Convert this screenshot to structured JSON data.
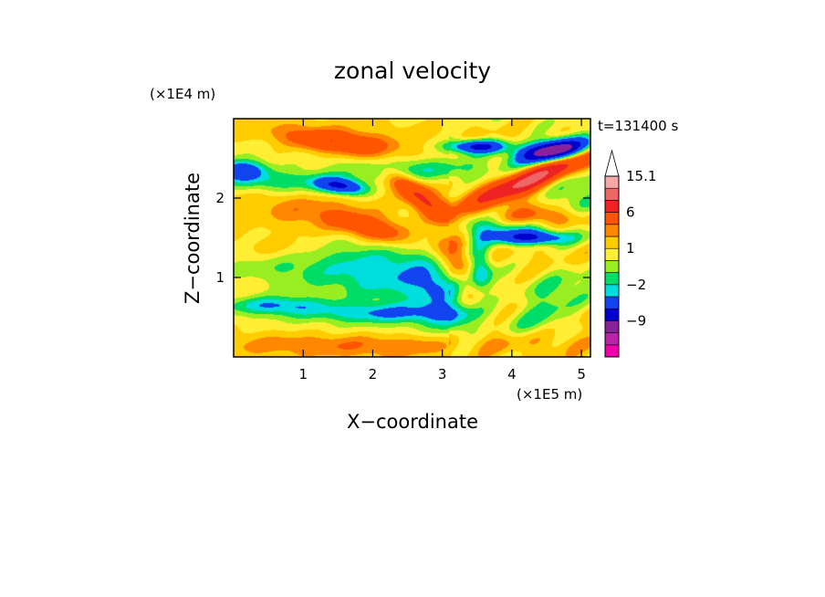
{
  "chart_data": {
    "type": "heatmap",
    "title": "zonal velocity",
    "xlabel": "X−coordinate",
    "ylabel": "Z−coordinate",
    "x_scale_label": "(×1E5 m)",
    "y_scale_label": "(×1E4 m)",
    "time_label": "t=131400 s",
    "xlim": [
      0,
      5.13
    ],
    "ylim": [
      0,
      3.0
    ],
    "x_ticks": [
      1,
      2,
      3,
      4,
      5
    ],
    "y_ticks": [
      1,
      2
    ],
    "colorbar": {
      "levels": [
        -15,
        -12,
        -9,
        -6,
        -3,
        -2,
        -1,
        0,
        1,
        2,
        3,
        6,
        9,
        12,
        15.1
      ],
      "colors": [
        "#ee00aa",
        "#bb22aa",
        "#882299",
        "#0000cc",
        "#1144ee",
        "#00dddd",
        "#00dd66",
        "#99ee22",
        "#ffee33",
        "#ffcc00",
        "#ff8800",
        "#ff5500",
        "#ee2222",
        "#ee6666",
        "#f4a8a8",
        "#ffffff"
      ],
      "labels": [
        {
          "value": -9,
          "text": "−9"
        },
        {
          "value": -2,
          "text": "−2"
        },
        {
          "value": 1,
          "text": "1"
        },
        {
          "value": 6,
          "text": "6"
        },
        {
          "value": 15.1,
          "text": "15.1"
        }
      ],
      "extend": "max"
    },
    "field_features": [
      {
        "x": 4.6,
        "z": 2.6,
        "amp": -14,
        "sx": 0.35,
        "sz": 0.09,
        "tilt": 0.15
      },
      {
        "x": 3.5,
        "z": 2.65,
        "amp": -8,
        "sx": 0.3,
        "sz": 0.06,
        "tilt": 0.0
      },
      {
        "x": 4.3,
        "z": 2.25,
        "amp": 9,
        "sx": 0.6,
        "sz": 0.11,
        "tilt": 0.35
      },
      {
        "x": 1.5,
        "z": 2.7,
        "amp": 5,
        "sx": 0.55,
        "sz": 0.1,
        "tilt": -0.1
      },
      {
        "x": 0.1,
        "z": 2.35,
        "amp": -6,
        "sx": 0.25,
        "sz": 0.09,
        "tilt": 0.0
      },
      {
        "x": 1.55,
        "z": 2.15,
        "amp": -7,
        "sx": 0.25,
        "sz": 0.07,
        "tilt": -0.1
      },
      {
        "x": 0.7,
        "z": 2.2,
        "amp": -3,
        "sx": 0.6,
        "sz": 0.1,
        "tilt": 0.0
      },
      {
        "x": 2.6,
        "z": 2.35,
        "amp": -2.5,
        "sx": 0.8,
        "sz": 0.1,
        "tilt": 0.0
      },
      {
        "x": 2.7,
        "z": 2.0,
        "amp": 5,
        "sx": 0.35,
        "sz": 0.12,
        "tilt": -0.6
      },
      {
        "x": 1.3,
        "z": 1.8,
        "amp": 2.5,
        "sx": 0.9,
        "sz": 0.15,
        "tilt": -0.1
      },
      {
        "x": 2.0,
        "z": 1.6,
        "amp": 3.5,
        "sx": 0.4,
        "sz": 0.1,
        "tilt": -0.2
      },
      {
        "x": 4.3,
        "z": 1.5,
        "amp": -6,
        "sx": 0.35,
        "sz": 0.06,
        "tilt": 0.0
      },
      {
        "x": 4.4,
        "z": 1.75,
        "amp": 3.5,
        "sx": 0.5,
        "sz": 0.1,
        "tilt": 0.0
      },
      {
        "x": 3.8,
        "z": 1.6,
        "amp": -3.5,
        "sx": 0.55,
        "sz": 0.12,
        "tilt": 0.0
      },
      {
        "x": 2.2,
        "z": 1.05,
        "amp": -2.8,
        "sx": 0.6,
        "sz": 0.32,
        "tilt": -0.3
      },
      {
        "x": 1.0,
        "z": 1.05,
        "amp": -1.8,
        "sx": 0.9,
        "sz": 0.3,
        "tilt": -0.2
      },
      {
        "x": 3.0,
        "z": 0.75,
        "amp": -2.8,
        "sx": 0.35,
        "sz": 0.35,
        "tilt": -0.8
      },
      {
        "x": 3.55,
        "z": 1.1,
        "amp": -4,
        "sx": 0.12,
        "sz": 0.25,
        "tilt": 0.0
      },
      {
        "x": 3.2,
        "z": 1.2,
        "amp": 2.5,
        "sx": 0.25,
        "sz": 0.25,
        "tilt": -0.9
      },
      {
        "x": 0.6,
        "z": 0.65,
        "amp": -3.5,
        "sx": 0.5,
        "sz": 0.08,
        "tilt": 0.0
      },
      {
        "x": 2.2,
        "z": 0.55,
        "amp": -3,
        "sx": 0.8,
        "sz": 0.08,
        "tilt": 0.0
      },
      {
        "x": 4.5,
        "z": 0.6,
        "amp": -2.5,
        "sx": 0.4,
        "sz": 0.25,
        "tilt": 0.5
      },
      {
        "x": 1.7,
        "z": 0.15,
        "amp": 1.8,
        "sx": 1.3,
        "sz": 0.1,
        "tilt": 0.0
      },
      {
        "x": 4.1,
        "z": 0.2,
        "amp": 1.8,
        "sx": 0.9,
        "sz": 0.12,
        "tilt": 0.0
      },
      {
        "x": 0.5,
        "z": 1.35,
        "amp": 1.5,
        "sx": 0.5,
        "sz": 0.12,
        "tilt": 0.0
      },
      {
        "x": 4.9,
        "z": 2.0,
        "amp": -2.5,
        "sx": 0.3,
        "sz": 0.2,
        "tilt": 0.0
      }
    ]
  }
}
